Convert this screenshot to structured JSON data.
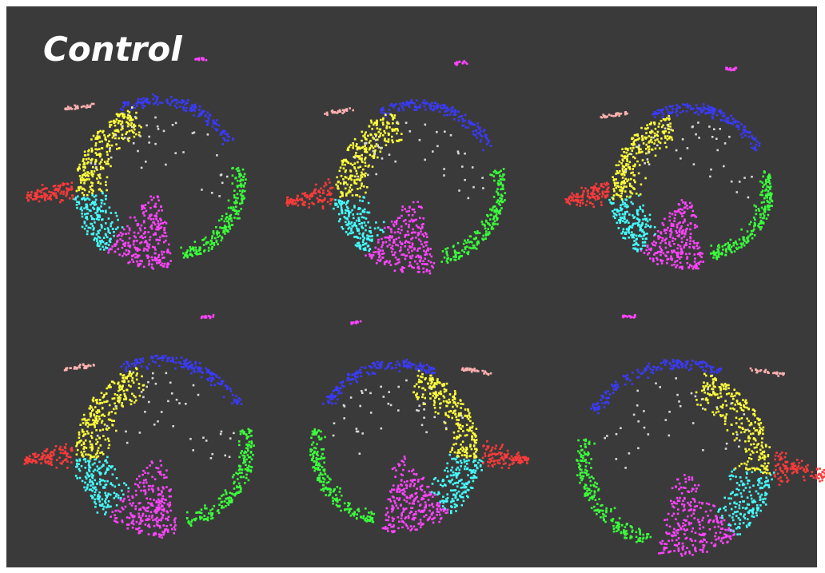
{
  "header": {
    "title": "Control"
  }
}
